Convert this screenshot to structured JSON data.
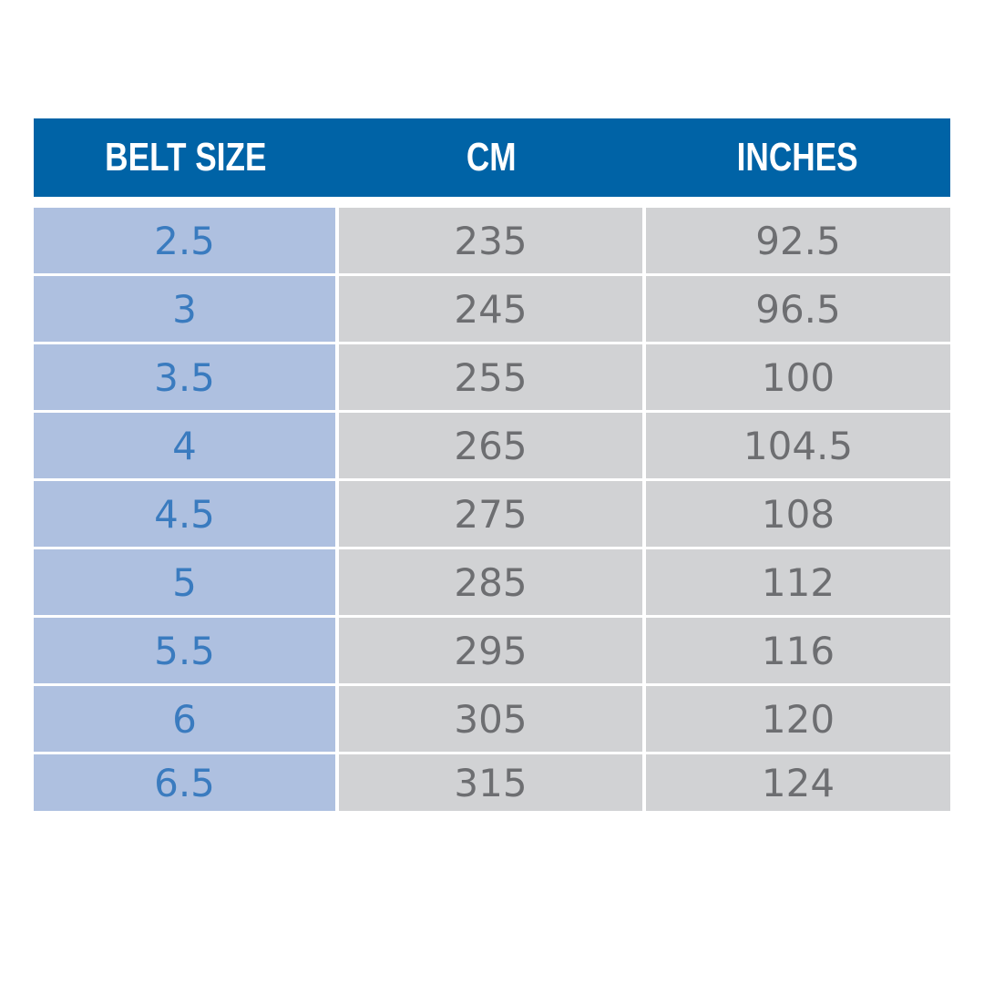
{
  "table": {
    "header": [
      "BELT SIZE",
      "CM",
      "INCHES"
    ],
    "rows": [
      [
        "2.5",
        "235",
        "92.5"
      ],
      [
        "3",
        "245",
        "96.5"
      ],
      [
        "3.5",
        "255",
        "100"
      ],
      [
        "4",
        "265",
        "104.5"
      ],
      [
        "4.5",
        "275",
        "108"
      ],
      [
        "5",
        "285",
        "112"
      ],
      [
        "5.5",
        "295",
        "116"
      ],
      [
        "6",
        "305",
        "120"
      ],
      [
        "6.5",
        "315",
        "124"
      ]
    ]
  }
}
